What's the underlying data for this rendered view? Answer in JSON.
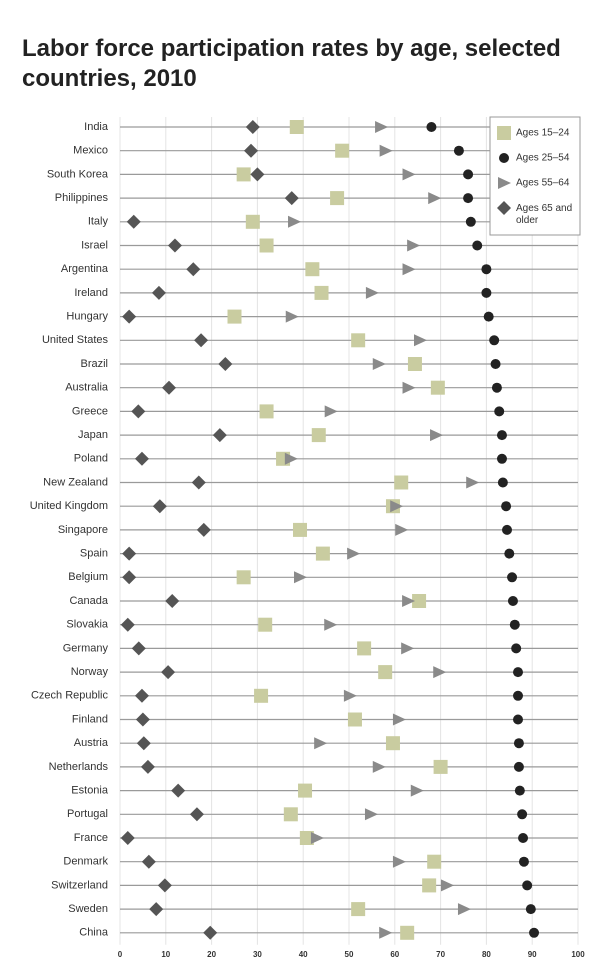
{
  "chart_data": {
    "type": "dot",
    "title": "Labor force participation rates by age, selected countries, 2010",
    "categories": [
      "India",
      "Mexico",
      "South Korea",
      "Philippines",
      "Italy",
      "Israel",
      "Argentina",
      "Ireland",
      "Hungary",
      "United States",
      "Brazil",
      "Australia",
      "Greece",
      "Japan",
      "Poland",
      "New Zealand",
      "United Kingdom",
      "Singapore",
      "Spain",
      "Belgium",
      "Canada",
      "Slovakia",
      "Germany",
      "Norway",
      "Czech Republic",
      "Finland",
      "Austria",
      "Netherlands",
      "Estonia",
      "Portugal",
      "France",
      "Denmark",
      "Switzerland",
      "Sweden",
      "China"
    ],
    "series": [
      {
        "name": "Ages 15–24",
        "color": "#c9cca0",
        "marker": "square",
        "values": [
          38.6,
          48.5,
          27,
          47.4,
          29,
          32,
          42,
          44,
          25,
          52,
          64.4,
          69.4,
          32,
          43.4,
          35.6,
          61.4,
          59.6,
          39.3,
          44.3,
          27,
          65.3,
          31.7,
          53.3,
          57.9,
          30.8,
          51.3,
          59.6,
          70,
          40.4,
          37.3,
          40.8,
          68.6,
          67.5,
          52,
          62.7
        ]
      },
      {
        "name": "Ages 25–54",
        "color": "#222222",
        "marker": "circle",
        "values": [
          68,
          74,
          76,
          76,
          76.6,
          78,
          80,
          80,
          80.5,
          81.7,
          82,
          82.3,
          82.8,
          83.4,
          83.4,
          83.6,
          84.3,
          84.5,
          85,
          85.6,
          85.8,
          86.2,
          86.5,
          86.9,
          86.9,
          86.9,
          87.1,
          87.1,
          87.3,
          87.8,
          88,
          88.2,
          88.9,
          89.7,
          90.4
        ]
      },
      {
        "name": "Ages 55–64",
        "color": "#8a8a8a",
        "marker": "triangle",
        "values": [
          57,
          58,
          63,
          68.6,
          38,
          64,
          63,
          55,
          37.5,
          65.5,
          56.5,
          63,
          46,
          69,
          37.3,
          76.9,
          60.3,
          61.4,
          50.9,
          39.3,
          62.9,
          45.9,
          62.7,
          69.7,
          50.2,
          60.9,
          43.7,
          56.5,
          64.8,
          54.8,
          43,
          60.9,
          71.4,
          75.1,
          57.9
        ]
      },
      {
        "name": "Ages 65 and older",
        "color": "#555555",
        "marker": "diamond",
        "values": [
          29,
          28.6,
          30,
          37.5,
          3,
          12,
          16,
          8.5,
          2,
          17.7,
          23,
          10.7,
          4,
          21.8,
          4.8,
          17.2,
          8.7,
          18.3,
          2,
          2,
          11.4,
          1.7,
          4.1,
          10.5,
          4.8,
          5,
          5.2,
          6.1,
          12.7,
          16.8,
          1.7,
          6.3,
          9.8,
          7.9,
          19.7
        ]
      }
    ],
    "xlim": [
      0,
      100
    ],
    "xticks": [
      0,
      10,
      20,
      30,
      40,
      50,
      60,
      70,
      80,
      90,
      100
    ],
    "legend": "upper-right"
  }
}
